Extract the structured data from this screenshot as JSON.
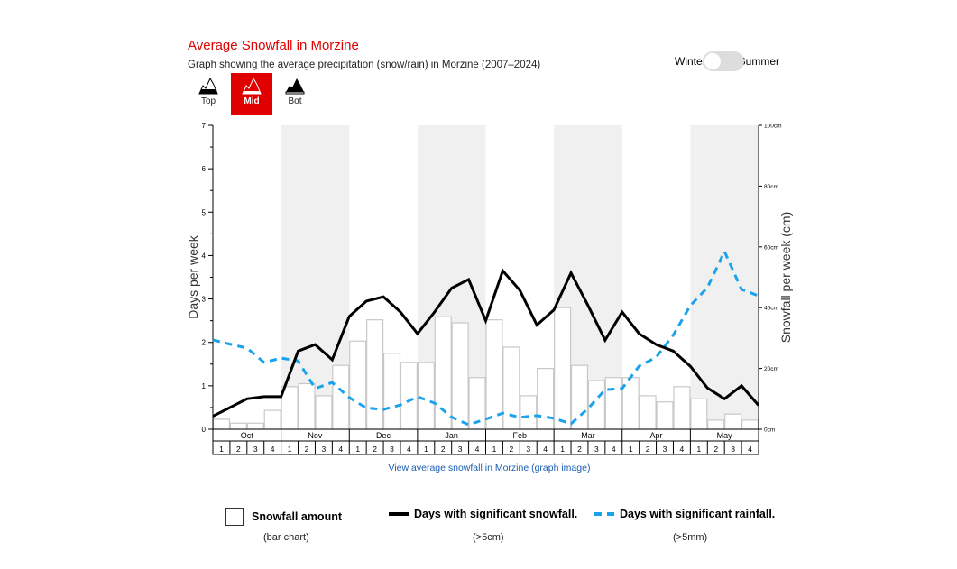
{
  "header": {
    "title": "Average Snowfall in Morzine",
    "subtitle": "Graph showing the average precipitation (snow/rain) in Morzine (2007–2024)"
  },
  "altitude_buttons": [
    {
      "label": "Top",
      "icon": "mountain-top-icon",
      "selected": false
    },
    {
      "label": "Mid",
      "icon": "mountain-mid-icon",
      "selected": true
    },
    {
      "label": "Bot",
      "icon": "mountain-bottom-icon",
      "selected": false
    }
  ],
  "season_toggle": {
    "left": "Winter",
    "right": "Summer",
    "value": "Winter"
  },
  "link": "View average snowfall in Morzine (graph image)",
  "legend": [
    {
      "label": "Snowfall amount",
      "sub": "(bar chart)"
    },
    {
      "label": "Days with significant snowfall.",
      "sub": "(>5cm)"
    },
    {
      "label": "Days with significant rainfall.",
      "sub": "(>5mm)"
    }
  ],
  "colors": {
    "accent": "#e00000",
    "rain": "#1aa3ec",
    "snow_days": "#000000",
    "band": "#f0f0f0"
  },
  "chart_data": {
    "type": "bar+line",
    "months": [
      "Oct",
      "Nov",
      "Dec",
      "Jan",
      "Feb",
      "Mar",
      "Apr",
      "May"
    ],
    "weeks": [
      "1",
      "2",
      "3",
      "4"
    ],
    "ylabel": "Days per week",
    "ylim": [
      0,
      7
    ],
    "yticks": [
      "0",
      "1",
      "2",
      "3",
      "4",
      "5",
      "6",
      "7"
    ],
    "y2label": "Snowfall per week (cm)",
    "y2lim": [
      0,
      100
    ],
    "y2ticks": [
      "0cm",
      "20cm",
      "40cm",
      "60cm",
      "80cm",
      "100cm"
    ],
    "snowfall_cm": [
      3.3,
      2,
      2,
      6.2,
      14,
      15,
      11,
      21,
      29,
      36,
      25,
      22,
      22,
      37,
      35,
      17,
      36,
      27,
      11,
      20,
      40,
      21,
      16,
      17,
      17,
      11,
      9,
      14,
      10,
      3,
      5,
      3
    ],
    "snow_days": [
      0.3,
      0.5,
      0.7,
      0.75,
      0.75,
      1.8,
      1.95,
      1.6,
      2.6,
      2.95,
      3.05,
      2.7,
      2.2,
      2.7,
      3.25,
      3.45,
      2.5,
      3.65,
      3.2,
      2.4,
      2.75,
      3.6,
      2.85,
      2.05,
      2.7,
      2.2,
      1.95,
      1.8,
      1.45,
      0.95,
      0.7,
      1.0,
      0.55
    ],
    "rain_days_cm_scale": [
      29.4,
      28,
      26.7,
      22,
      23.4,
      22.5,
      13.4,
      15.4,
      10.4,
      7,
      6.5,
      8,
      10.7,
      8.6,
      4,
      1.5,
      3.3,
      5.3,
      3.9,
      4.5,
      3.6,
      1.8,
      6.8,
      13,
      13.4,
      20.8,
      23.7,
      31,
      40.7,
      46.6,
      58.5,
      46,
      43.9
    ],
    "shaded_months": [
      "Nov",
      "Jan",
      "Mar",
      "May"
    ]
  }
}
